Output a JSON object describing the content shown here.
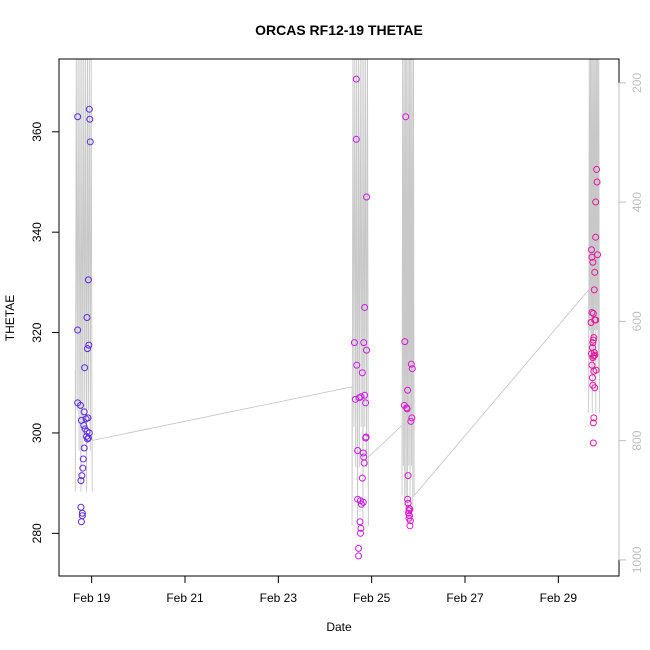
{
  "chart_data": {
    "type": "scatter",
    "title": "ORCAS RF12-19 THETAE",
    "xlabel": "Date",
    "ylabel": "THETAE",
    "xlim": [
      18.3,
      30.3
    ],
    "ylim": [
      271.5,
      374.5
    ],
    "x_ticks": [
      19,
      21,
      23,
      25,
      27,
      29
    ],
    "x_tick_labels": [
      "Feb 19",
      "Feb 21",
      "Feb 23",
      "Feb 25",
      "Feb 27",
      "Feb 29"
    ],
    "y_ticks": [
      280,
      300,
      320,
      340,
      360
    ],
    "y_tick_labels": [
      "280",
      "300",
      "320",
      "340",
      "360"
    ],
    "right_axis": {
      "ticks": [
        200,
        400,
        600,
        800,
        1000
      ],
      "tick_labels": [
        "200",
        "400",
        "600",
        "800",
        "1000"
      ],
      "lim": [
        1027,
        160
      ],
      "color": "#bfbfbf"
    },
    "points": [
      {
        "x": 18.7,
        "y": 363.0,
        "color": "#5a2be2"
      },
      {
        "x": 18.95,
        "y": 364.5,
        "color": "#5a2be2"
      },
      {
        "x": 18.96,
        "y": 362.5,
        "color": "#5a2be2"
      },
      {
        "x": 18.97,
        "y": 358.0,
        "color": "#5a2be2"
      },
      {
        "x": 18.93,
        "y": 330.5,
        "color": "#5c2ae2"
      },
      {
        "x": 18.9,
        "y": 323.0,
        "color": "#5c2ae2"
      },
      {
        "x": 18.7,
        "y": 320.5,
        "color": "#5a2be2"
      },
      {
        "x": 18.94,
        "y": 317.5,
        "color": "#5c2ae2"
      },
      {
        "x": 18.91,
        "y": 316.8,
        "color": "#5c2ae2"
      },
      {
        "x": 18.85,
        "y": 313.0,
        "color": "#5c2ae2"
      },
      {
        "x": 18.7,
        "y": 306.0,
        "color": "#5a2be2"
      },
      {
        "x": 18.76,
        "y": 305.5,
        "color": "#5a2be2"
      },
      {
        "x": 18.84,
        "y": 304.2,
        "color": "#5c2ae2"
      },
      {
        "x": 18.92,
        "y": 303.0,
        "color": "#5c2ae2"
      },
      {
        "x": 18.88,
        "y": 302.8,
        "color": "#5c2ae2"
      },
      {
        "x": 18.78,
        "y": 302.5,
        "color": "#5a2be2"
      },
      {
        "x": 18.83,
        "y": 301.5,
        "color": "#5c2ae2"
      },
      {
        "x": 18.86,
        "y": 300.8,
        "color": "#5c2ae2"
      },
      {
        "x": 18.9,
        "y": 300.3,
        "color": "#5c2ae2"
      },
      {
        "x": 18.95,
        "y": 300.0,
        "color": "#5c2ae2"
      },
      {
        "x": 18.89,
        "y": 299.3,
        "color": "#5c2ae2"
      },
      {
        "x": 18.93,
        "y": 299.0,
        "color": "#5c2ae2"
      },
      {
        "x": 18.91,
        "y": 298.8,
        "color": "#5c2ae2"
      },
      {
        "x": 18.84,
        "y": 297.0,
        "color": "#5c2ae2"
      },
      {
        "x": 18.82,
        "y": 294.8,
        "color": "#5c2ae2"
      },
      {
        "x": 18.81,
        "y": 293.0,
        "color": "#5c2ae2"
      },
      {
        "x": 18.79,
        "y": 291.5,
        "color": "#5c2ae2"
      },
      {
        "x": 18.77,
        "y": 290.5,
        "color": "#5c2ae2"
      },
      {
        "x": 18.77,
        "y": 285.2,
        "color": "#5c2ae2"
      },
      {
        "x": 18.8,
        "y": 284.0,
        "color": "#5c2ae2"
      },
      {
        "x": 18.8,
        "y": 283.5,
        "color": "#5c2ae2"
      },
      {
        "x": 18.78,
        "y": 282.3,
        "color": "#5c2ae2"
      },
      {
        "x": 24.67,
        "y": 370.5,
        "color": "#c21ee6"
      },
      {
        "x": 24.67,
        "y": 358.5,
        "color": "#c21ee6"
      },
      {
        "x": 24.89,
        "y": 347.0,
        "color": "#c81ee2"
      },
      {
        "x": 24.85,
        "y": 325.0,
        "color": "#c81ee2"
      },
      {
        "x": 24.63,
        "y": 318.0,
        "color": "#c21ee6"
      },
      {
        "x": 24.83,
        "y": 318.0,
        "color": "#c81ee2"
      },
      {
        "x": 24.89,
        "y": 316.5,
        "color": "#c81ee2"
      },
      {
        "x": 24.68,
        "y": 313.5,
        "color": "#c21ee6"
      },
      {
        "x": 24.8,
        "y": 312.0,
        "color": "#c81ee2"
      },
      {
        "x": 24.85,
        "y": 307.5,
        "color": "#c81ee2"
      },
      {
        "x": 24.65,
        "y": 306.7,
        "color": "#c21ee6"
      },
      {
        "x": 24.73,
        "y": 307.0,
        "color": "#c21ee6"
      },
      {
        "x": 24.77,
        "y": 307.2,
        "color": "#c81ee2"
      },
      {
        "x": 24.87,
        "y": 306.0,
        "color": "#c81ee2"
      },
      {
        "x": 24.88,
        "y": 299.2,
        "color": "#c81ee2"
      },
      {
        "x": 24.87,
        "y": 299.0,
        "color": "#c81ee2"
      },
      {
        "x": 24.7,
        "y": 296.5,
        "color": "#c21ee6"
      },
      {
        "x": 24.82,
        "y": 296.0,
        "color": "#c81ee2"
      },
      {
        "x": 24.83,
        "y": 295.2,
        "color": "#c81ee2"
      },
      {
        "x": 24.84,
        "y": 294.0,
        "color": "#c81ee2"
      },
      {
        "x": 24.8,
        "y": 291.0,
        "color": "#c81ee2"
      },
      {
        "x": 24.7,
        "y": 286.8,
        "color": "#c21ee6"
      },
      {
        "x": 24.76,
        "y": 286.5,
        "color": "#c81ee2"
      },
      {
        "x": 24.82,
        "y": 286.2,
        "color": "#c81ee2"
      },
      {
        "x": 24.78,
        "y": 285.8,
        "color": "#c81ee2"
      },
      {
        "x": 24.75,
        "y": 282.3,
        "color": "#c81ee2"
      },
      {
        "x": 24.77,
        "y": 281.0,
        "color": "#c81ee2"
      },
      {
        "x": 24.76,
        "y": 280.0,
        "color": "#c81ee2"
      },
      {
        "x": 24.72,
        "y": 277.0,
        "color": "#c21ee6"
      },
      {
        "x": 24.72,
        "y": 275.5,
        "color": "#c21ee6"
      },
      {
        "x": 25.73,
        "y": 363.0,
        "color": "#d91bd6"
      },
      {
        "x": 25.71,
        "y": 318.2,
        "color": "#d91bd6"
      },
      {
        "x": 25.85,
        "y": 313.7,
        "color": "#dc1bcf"
      },
      {
        "x": 25.87,
        "y": 312.8,
        "color": "#dc1bcf"
      },
      {
        "x": 25.77,
        "y": 308.5,
        "color": "#d91bd6"
      },
      {
        "x": 25.7,
        "y": 305.5,
        "color": "#d91bd6"
      },
      {
        "x": 25.75,
        "y": 305.0,
        "color": "#d91bd6"
      },
      {
        "x": 25.76,
        "y": 304.8,
        "color": "#d91bd6"
      },
      {
        "x": 25.86,
        "y": 303.0,
        "color": "#dc1bcf"
      },
      {
        "x": 25.84,
        "y": 302.3,
        "color": "#dc1bcf"
      },
      {
        "x": 25.78,
        "y": 291.5,
        "color": "#dc1bcf"
      },
      {
        "x": 25.77,
        "y": 286.8,
        "color": "#dc1bcf"
      },
      {
        "x": 25.78,
        "y": 286.0,
        "color": "#dc1bcf"
      },
      {
        "x": 25.8,
        "y": 285.0,
        "color": "#dc1bcf"
      },
      {
        "x": 25.82,
        "y": 284.8,
        "color": "#dc1bcf"
      },
      {
        "x": 25.8,
        "y": 284.5,
        "color": "#dc1bcf"
      },
      {
        "x": 25.79,
        "y": 284.0,
        "color": "#dc1bcf"
      },
      {
        "x": 25.81,
        "y": 283.5,
        "color": "#dc1bcf"
      },
      {
        "x": 25.8,
        "y": 283.0,
        "color": "#dc1bcf"
      },
      {
        "x": 25.83,
        "y": 282.5,
        "color": "#dc1bcf"
      },
      {
        "x": 25.82,
        "y": 281.5,
        "color": "#dc1bcf"
      },
      {
        "x": 29.82,
        "y": 352.5,
        "color": "#e4179f"
      },
      {
        "x": 29.83,
        "y": 350.0,
        "color": "#e4179f"
      },
      {
        "x": 29.8,
        "y": 346.0,
        "color": "#e4179f"
      },
      {
        "x": 29.8,
        "y": 339.0,
        "color": "#e4179f"
      },
      {
        "x": 29.71,
        "y": 336.5,
        "color": "#e418a6"
      },
      {
        "x": 29.84,
        "y": 335.5,
        "color": "#e4179f"
      },
      {
        "x": 29.72,
        "y": 335.0,
        "color": "#e418a6"
      },
      {
        "x": 29.74,
        "y": 334.0,
        "color": "#e418a6"
      },
      {
        "x": 29.78,
        "y": 332.0,
        "color": "#e4179f"
      },
      {
        "x": 29.77,
        "y": 328.5,
        "color": "#e4179f"
      },
      {
        "x": 29.8,
        "y": 322.5,
        "color": "#e4179f"
      },
      {
        "x": 29.72,
        "y": 324.0,
        "color": "#e418a6"
      },
      {
        "x": 29.75,
        "y": 323.8,
        "color": "#e418a6"
      },
      {
        "x": 29.7,
        "y": 322.0,
        "color": "#e418a6"
      },
      {
        "x": 29.78,
        "y": 322.5,
        "color": "#e4179f"
      },
      {
        "x": 29.76,
        "y": 319.0,
        "color": "#e4179f"
      },
      {
        "x": 29.75,
        "y": 318.5,
        "color": "#e4179f"
      },
      {
        "x": 29.74,
        "y": 318.0,
        "color": "#e418a6"
      },
      {
        "x": 29.73,
        "y": 317.0,
        "color": "#e418a6"
      },
      {
        "x": 29.77,
        "y": 316.0,
        "color": "#e4179f"
      },
      {
        "x": 29.71,
        "y": 315.8,
        "color": "#e418a6"
      },
      {
        "x": 29.78,
        "y": 315.5,
        "color": "#e4179f"
      },
      {
        "x": 29.76,
        "y": 315.3,
        "color": "#e4179f"
      },
      {
        "x": 29.74,
        "y": 315.0,
        "color": "#e418a6"
      },
      {
        "x": 29.72,
        "y": 313.5,
        "color": "#e418a6"
      },
      {
        "x": 29.76,
        "y": 312.3,
        "color": "#e4179f"
      },
      {
        "x": 29.73,
        "y": 311.0,
        "color": "#e418a6"
      },
      {
        "x": 29.81,
        "y": 312.5,
        "color": "#e4179f"
      },
      {
        "x": 29.74,
        "y": 309.5,
        "color": "#e418a6"
      },
      {
        "x": 29.78,
        "y": 309.0,
        "color": "#e4179f"
      },
      {
        "x": 29.76,
        "y": 303.0,
        "color": "#e4179f"
      },
      {
        "x": 29.75,
        "y": 302.0,
        "color": "#e418a6"
      },
      {
        "x": 29.75,
        "y": 298.0,
        "color": "#e418a6"
      }
    ]
  }
}
